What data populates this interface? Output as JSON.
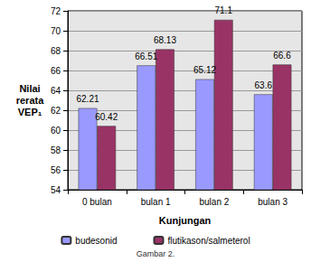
{
  "chart_data": {
    "type": "bar",
    "title": "Gambar 2.",
    "x_label": "Kunjungan",
    "y_label": "Nilai\nrerata\nVEP₁",
    "categories": [
      "0 bulan",
      "bulan 1",
      "bulan 2",
      "bulan 3"
    ],
    "series": [
      {
        "name": "budesonid",
        "color": "#9999ff",
        "values": [
          62.21,
          66.51,
          65.12,
          63.6
        ]
      },
      {
        "name": "flutikason/salmeterol",
        "color": "#993366",
        "values": [
          60.42,
          68.13,
          71.1,
          66.6
        ]
      }
    ],
    "ylim": [
      54,
      72
    ],
    "yticks": [
      54,
      56,
      58,
      60,
      62,
      64,
      66,
      68,
      70,
      72
    ],
    "grid": true,
    "legend": "bottom",
    "data_labels": true
  }
}
